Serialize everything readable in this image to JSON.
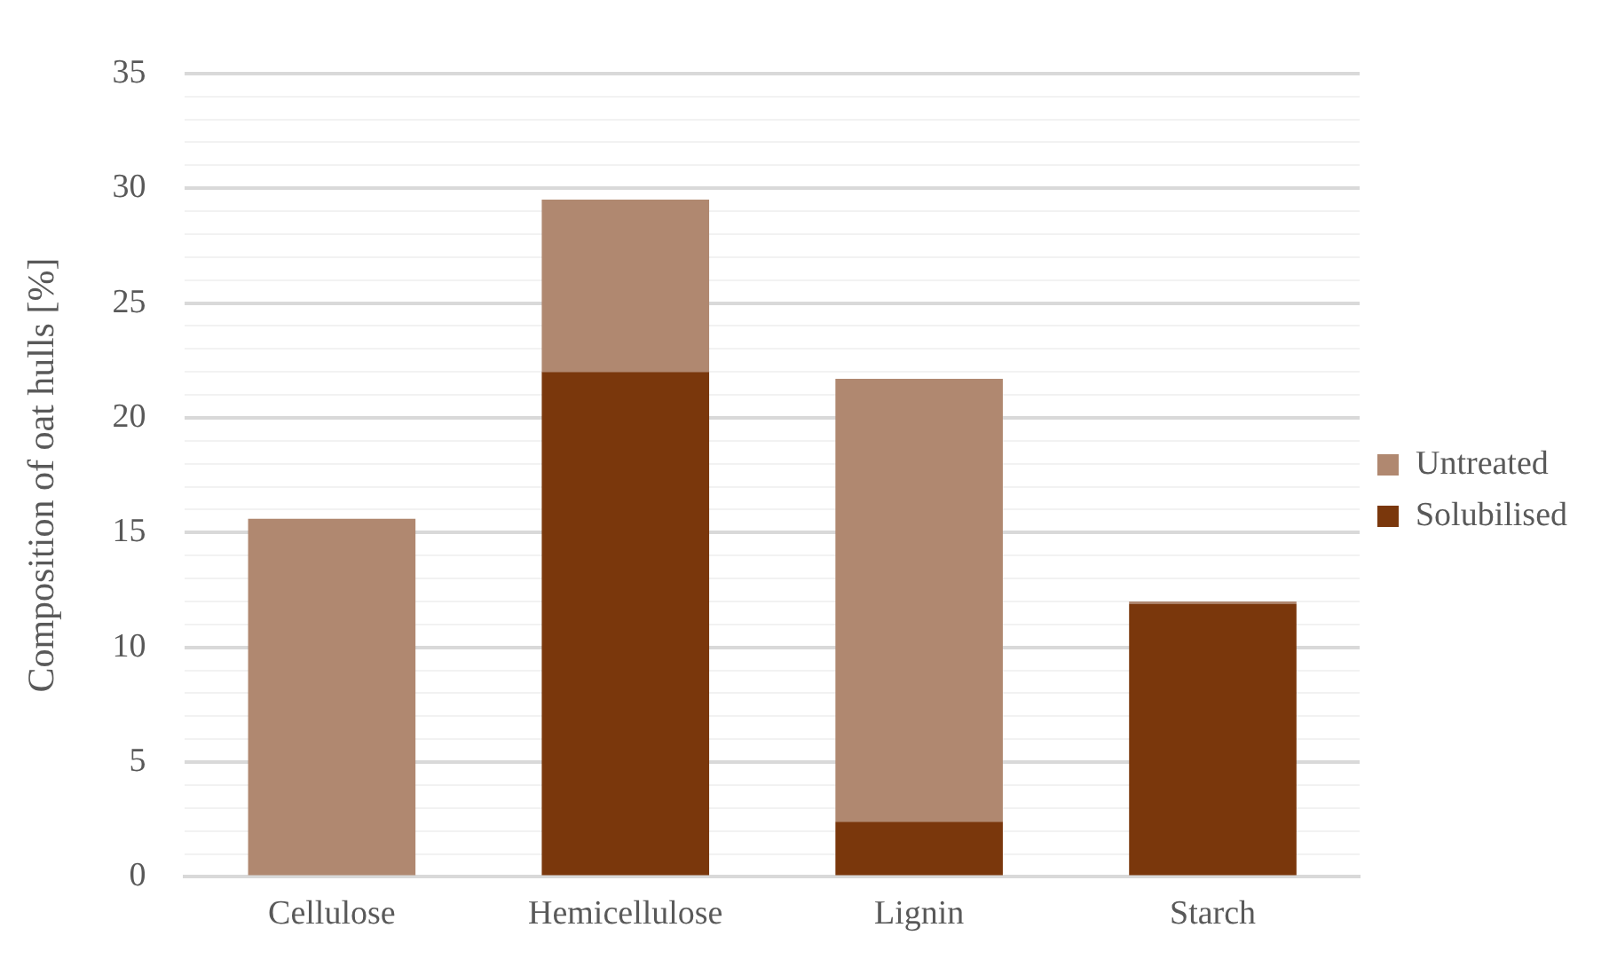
{
  "chart_data": {
    "type": "bar",
    "stacked": true,
    "ylabel": "Composition of oat hulls [%]",
    "categories": [
      "Cellulose",
      "Hemicellulose",
      "Lignin",
      "Starch"
    ],
    "series": [
      {
        "name": "Solubilised",
        "color": "#7a370c",
        "values": [
          0,
          22.0,
          2.4,
          11.9
        ]
      },
      {
        "name": "Untreated",
        "color": "#b08870",
        "values": [
          15.6,
          7.5,
          19.3,
          0.1
        ]
      }
    ],
    "ylim": [
      0,
      35
    ],
    "yticks": [
      0,
      {
        "value": 1,
        "label": null
      },
      {
        "value": 2,
        "label": null
      },
      {
        "value": 3,
        "label": null
      },
      {
        "value": 4,
        "label": null
      },
      5,
      {
        "value": 6,
        "label": null
      },
      {
        "value": 7,
        "label": null
      },
      {
        "value": 8,
        "label": null
      },
      {
        "value": 9,
        "label": null
      },
      10,
      {
        "value": 11,
        "label": null
      },
      {
        "value": 12,
        "label": null
      },
      {
        "value": 13,
        "label": null
      },
      {
        "value": 14,
        "label": null
      },
      15,
      {
        "value": 16,
        "label": null
      },
      {
        "value": 17,
        "label": null
      },
      {
        "value": 18,
        "label": null
      },
      {
        "value": 19,
        "label": null
      },
      20,
      {
        "value": 21,
        "label": null
      },
      {
        "value": 22,
        "label": null
      },
      {
        "value": 23,
        "label": null
      },
      {
        "value": 24,
        "label": null
      },
      25,
      {
        "value": 26,
        "label": null
      },
      {
        "value": 27,
        "label": null
      },
      {
        "value": 28,
        "label": null
      },
      {
        "value": 29,
        "label": null
      },
      30,
      {
        "value": 31,
        "label": null
      },
      {
        "value": 32,
        "label": null
      },
      {
        "value": 33,
        "label": null
      },
      {
        "value": 34,
        "label": null
      },
      35
    ],
    "grid": "y",
    "legend": "right"
  }
}
